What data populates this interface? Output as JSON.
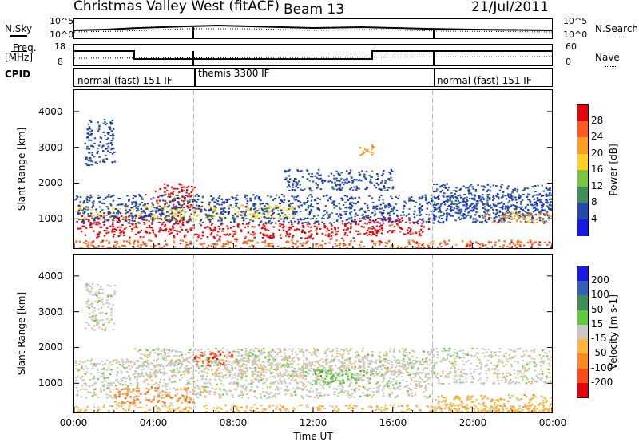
{
  "header": {
    "station": "Christmas Valley West (fitACF)",
    "beam": "Beam 13",
    "date": "21/Jul/2011"
  },
  "labels": {
    "nsky": "N.Sky",
    "nsearch": "N.Search",
    "freq_line1": "Freq.",
    "freq_line2": "[MHz]",
    "nave": "Nave",
    "cpid": "CPID"
  },
  "noise_axis": {
    "left_top": "10^5",
    "left_bottom": "10^0",
    "right_top": "10^5",
    "right_bottom": "10^0"
  },
  "freq_axis": {
    "left_top": "18",
    "left_bottom": "8",
    "right_top": "60",
    "right_bottom": "0"
  },
  "cpid_segments": [
    {
      "label": "normal (fast) 151 IF",
      "start": 0,
      "end": 6
    },
    {
      "label": "themis 3300 IF",
      "start": 6,
      "end": 18
    },
    {
      "label": "normal (fast) 151 IF",
      "start": 18,
      "end": 24
    }
  ],
  "chart_data": [
    {
      "type": "heatmap",
      "name": "power",
      "xlabel": "",
      "ylabel": "Slant Range [km]",
      "xlim": [
        0,
        24
      ],
      "ylim": [
        180,
        4600
      ],
      "yticks": [
        1000,
        2000,
        3000,
        4000
      ],
      "colorbar": {
        "label": "Power [dB]",
        "ticks": [
          "28",
          "24",
          "20",
          "16",
          "12",
          "8",
          "4"
        ],
        "colors": [
          "#e8000b",
          "#ff5a1c",
          "#ff9d1f",
          "#ffd21f",
          "#7cc43c",
          "#3d8f55",
          "#234aa8",
          "#1a18e6"
        ]
      },
      "blobs": [
        {
          "t0": 0.0,
          "t1": 24.0,
          "r0": 180,
          "r1": 420,
          "c": 1
        },
        {
          "t0": 0.0,
          "t1": 6.0,
          "r0": 500,
          "r1": 1100,
          "c": 0
        },
        {
          "t0": 6.0,
          "t1": 14.0,
          "r0": 450,
          "r1": 900,
          "c": 0
        },
        {
          "t0": 14.0,
          "t1": 17.8,
          "r0": 550,
          "r1": 1050,
          "c": 0
        },
        {
          "t0": 4.0,
          "t1": 6.0,
          "r0": 1300,
          "r1": 2000,
          "c": 0
        },
        {
          "t0": 0.0,
          "t1": 11.0,
          "r0": 1000,
          "r1": 1400,
          "c": 3
        },
        {
          "t0": 0.0,
          "t1": 24.0,
          "r0": 900,
          "r1": 1700,
          "c": 6
        },
        {
          "t0": 18.0,
          "t1": 24.0,
          "r0": 1100,
          "r1": 2000,
          "c": 6
        },
        {
          "t0": 20.5,
          "t1": 24.0,
          "r0": 900,
          "r1": 1200,
          "c": 2
        },
        {
          "t0": 0.5,
          "t1": 2.0,
          "r0": 2500,
          "r1": 3800,
          "c": 6
        },
        {
          "t0": 14.3,
          "t1": 15.0,
          "r0": 2800,
          "r1": 3100,
          "c": 2
        },
        {
          "t0": 10.5,
          "t1": 16.0,
          "r0": 1800,
          "r1": 2400,
          "c": 6
        }
      ]
    },
    {
      "type": "heatmap",
      "name": "velocity",
      "xlabel": "Time UT",
      "ylabel": "Slant Range [km]",
      "xlim": [
        0,
        24
      ],
      "ylim": [
        180,
        4600
      ],
      "xticks": [
        "00:00",
        "04:00",
        "08:00",
        "12:00",
        "16:00",
        "20:00",
        "00:00"
      ],
      "yticks": [
        1000,
        2000,
        3000,
        4000
      ],
      "colorbar": {
        "label": "Velocity [m s-1]",
        "ticks": [
          "200",
          "100",
          "50",
          "15",
          "-15",
          "-50",
          "-100",
          "-200"
        ],
        "colors": [
          "#1a18e6",
          "#3560b8",
          "#3d8f55",
          "#5ecb3c",
          "#c8c8c0",
          "#ffb43a",
          "#ff8a1c",
          "#ff4a14",
          "#e8000b"
        ]
      },
      "blobs": [
        {
          "t0": 0.0,
          "t1": 24.0,
          "r0": 180,
          "r1": 420,
          "c": 5
        },
        {
          "t0": 0.0,
          "t1": 18.0,
          "r0": 600,
          "r1": 1700,
          "c": 4
        },
        {
          "t0": 3.0,
          "t1": 18.0,
          "r0": 1200,
          "r1": 2000,
          "c": 4
        },
        {
          "t0": 2.0,
          "t1": 6.0,
          "r0": 450,
          "r1": 900,
          "c": 6
        },
        {
          "t0": 6.0,
          "t1": 8.0,
          "r0": 1500,
          "r1": 1900,
          "c": 7
        },
        {
          "t0": 8.0,
          "t1": 11.0,
          "r0": 1600,
          "r1": 2000,
          "c": 4
        },
        {
          "t0": 12.0,
          "t1": 15.0,
          "r0": 1000,
          "r1": 1400,
          "c": 3
        },
        {
          "t0": 18.0,
          "t1": 24.0,
          "r0": 1000,
          "r1": 2000,
          "c": 4
        },
        {
          "t0": 0.5,
          "t1": 2.0,
          "r0": 2500,
          "r1": 3800,
          "c": 4
        },
        {
          "t0": 18.0,
          "t1": 24.0,
          "r0": 180,
          "r1": 700,
          "c": 5
        }
      ]
    }
  ]
}
